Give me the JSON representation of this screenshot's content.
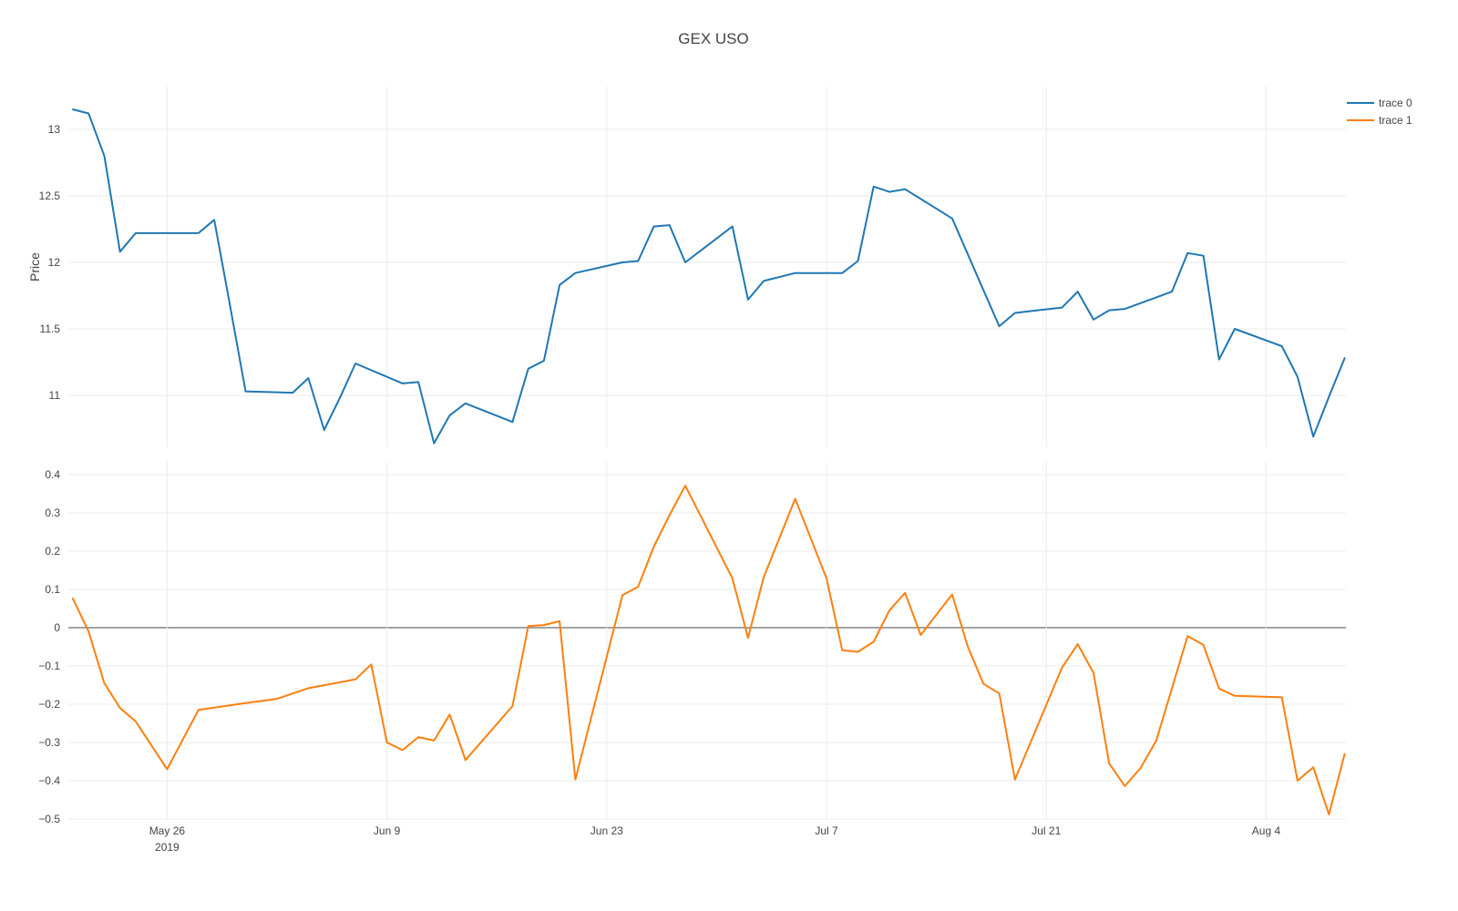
{
  "title": "GEX USO",
  "legend": {
    "items": [
      {
        "label": "trace 0",
        "color": "#1f77b4"
      },
      {
        "label": "trace 1",
        "color": "#ff7f0e"
      }
    ]
  },
  "colors": {
    "grid": "#ebebeb",
    "zeroline": "#444444",
    "text": "#444444",
    "background": "#ffffff"
  },
  "chart_data": {
    "type": "line",
    "title": "GEX USO",
    "x_type": "date",
    "x_range": [
      "2019-05-20",
      "2019-08-09"
    ],
    "grid": true,
    "legend_position": "top-right",
    "x_ticks": [
      {
        "date": "2019-05-26",
        "label": "May 26",
        "year": "2019"
      },
      {
        "date": "2019-06-09",
        "label": "Jun 9",
        "year": ""
      },
      {
        "date": "2019-06-23",
        "label": "Jun 23",
        "year": ""
      },
      {
        "date": "2019-07-07",
        "label": "Jul 7",
        "year": ""
      },
      {
        "date": "2019-07-21",
        "label": "Jul 21",
        "year": ""
      },
      {
        "date": "2019-08-04",
        "label": "Aug 4",
        "year": ""
      }
    ],
    "subplots": [
      {
        "name": "price",
        "ylabel": "Price",
        "y_range": [
          10.55,
          13.32
        ],
        "y_ticks": [
          {
            "label": "13",
            "value": 13
          },
          {
            "label": "12.5",
            "value": 12.5
          },
          {
            "label": "12",
            "value": 12
          },
          {
            "label": "11.5",
            "value": 11.5
          },
          {
            "label": "11",
            "value": 11
          }
        ],
        "zeroline": false
      },
      {
        "name": "spread",
        "ylabel": "",
        "y_range": [
          -0.52,
          0.44
        ],
        "y_ticks": [
          {
            "label": "0.4",
            "value": 0.4
          },
          {
            "label": "0.3",
            "value": 0.3
          },
          {
            "label": "0.2",
            "value": 0.2
          },
          {
            "label": "0.1",
            "value": 0.1
          },
          {
            "label": "0",
            "value": 0
          },
          {
            "label": "−0.1",
            "value": -0.1
          },
          {
            "label": "−0.2",
            "value": -0.2
          },
          {
            "label": "−0.3",
            "value": -0.3
          },
          {
            "label": "−0.4",
            "value": -0.4
          },
          {
            "label": "−0.5",
            "value": -0.5
          }
        ],
        "zeroline": true
      }
    ],
    "series": [
      {
        "name": "trace 0",
        "color": "#1f77b4",
        "subplot": "price",
        "points": [
          [
            "2019-05-20",
            13.15
          ],
          [
            "2019-05-21",
            13.12
          ],
          [
            "2019-05-22",
            12.8
          ],
          [
            "2019-05-23",
            12.08
          ],
          [
            "2019-05-24",
            12.22
          ],
          [
            "2019-05-28",
            12.22
          ],
          [
            "2019-05-29",
            12.32
          ],
          [
            "2019-05-30",
            11.68
          ],
          [
            "2019-05-31",
            11.03
          ],
          [
            "2019-06-03",
            11.02
          ],
          [
            "2019-06-04",
            11.13
          ],
          [
            "2019-06-05",
            10.74
          ],
          [
            "2019-06-06",
            10.98
          ],
          [
            "2019-06-07",
            11.24
          ],
          [
            "2019-06-10",
            11.09
          ],
          [
            "2019-06-11",
            11.1
          ],
          [
            "2019-06-12",
            10.64
          ],
          [
            "2019-06-13",
            10.85
          ],
          [
            "2019-06-14",
            10.94
          ],
          [
            "2019-06-17",
            10.8
          ],
          [
            "2019-06-18",
            11.2
          ],
          [
            "2019-06-19",
            11.26
          ],
          [
            "2019-06-20",
            11.83
          ],
          [
            "2019-06-21",
            11.92
          ],
          [
            "2019-06-24",
            12.0
          ],
          [
            "2019-06-25",
            12.01
          ],
          [
            "2019-06-26",
            12.27
          ],
          [
            "2019-06-27",
            12.28
          ],
          [
            "2019-06-28",
            12.0
          ],
          [
            "2019-07-01",
            12.27
          ],
          [
            "2019-07-02",
            11.72
          ],
          [
            "2019-07-03",
            11.86
          ],
          [
            "2019-07-05",
            11.92
          ],
          [
            "2019-07-08",
            11.92
          ],
          [
            "2019-07-09",
            12.01
          ],
          [
            "2019-07-10",
            12.57
          ],
          [
            "2019-07-11",
            12.53
          ],
          [
            "2019-07-12",
            12.55
          ],
          [
            "2019-07-15",
            12.33
          ],
          [
            "2019-07-16",
            12.06
          ],
          [
            "2019-07-17",
            11.79
          ],
          [
            "2019-07-18",
            11.52
          ],
          [
            "2019-07-19",
            11.62
          ],
          [
            "2019-07-22",
            11.66
          ],
          [
            "2019-07-23",
            11.78
          ],
          [
            "2019-07-24",
            11.57
          ],
          [
            "2019-07-25",
            11.64
          ],
          [
            "2019-07-26",
            11.65
          ],
          [
            "2019-07-29",
            11.78
          ],
          [
            "2019-07-30",
            12.07
          ],
          [
            "2019-07-31",
            12.05
          ],
          [
            "2019-08-01",
            11.27
          ],
          [
            "2019-08-02",
            11.5
          ],
          [
            "2019-08-05",
            11.37
          ],
          [
            "2019-08-06",
            11.14
          ],
          [
            "2019-08-07",
            10.69
          ],
          [
            "2019-08-08",
            10.99
          ],
          [
            "2019-08-09",
            11.28
          ]
        ]
      },
      {
        "name": "trace 1",
        "color": "#ff7f0e",
        "subplot": "spread",
        "points": [
          [
            "2019-05-20",
            0.076
          ],
          [
            "2019-05-21",
            -0.01
          ],
          [
            "2019-05-22",
            -0.145
          ],
          [
            "2019-05-23",
            -0.21
          ],
          [
            "2019-05-24",
            -0.245
          ],
          [
            "2019-05-26",
            -0.37
          ],
          [
            "2019-05-28",
            -0.215
          ],
          [
            "2019-05-31",
            -0.197
          ],
          [
            "2019-06-02",
            -0.186
          ],
          [
            "2019-06-04",
            -0.158
          ],
          [
            "2019-06-07",
            -0.135
          ],
          [
            "2019-06-08",
            -0.096
          ],
          [
            "2019-06-09",
            -0.3
          ],
          [
            "2019-06-10",
            -0.32
          ],
          [
            "2019-06-11",
            -0.286
          ],
          [
            "2019-06-12",
            -0.295
          ],
          [
            "2019-06-13",
            -0.227
          ],
          [
            "2019-06-14",
            -0.346
          ],
          [
            "2019-06-17",
            -0.205
          ],
          [
            "2019-06-18",
            0.004
          ],
          [
            "2019-06-19",
            0.007
          ],
          [
            "2019-06-20",
            0.017
          ],
          [
            "2019-06-21",
            -0.397
          ],
          [
            "2019-06-24",
            0.085
          ],
          [
            "2019-06-25",
            0.107
          ],
          [
            "2019-06-26",
            0.212
          ],
          [
            "2019-06-27",
            0.294
          ],
          [
            "2019-06-28",
            0.371
          ],
          [
            "2019-07-01",
            0.129
          ],
          [
            "2019-07-02",
            -0.027
          ],
          [
            "2019-07-03",
            0.132
          ],
          [
            "2019-07-05",
            0.337
          ],
          [
            "2019-07-06",
            0.233
          ],
          [
            "2019-07-07",
            0.129
          ],
          [
            "2019-07-08",
            -0.059
          ],
          [
            "2019-07-09",
            -0.063
          ],
          [
            "2019-07-10",
            -0.037
          ],
          [
            "2019-07-11",
            0.045
          ],
          [
            "2019-07-12",
            0.091
          ],
          [
            "2019-07-13",
            -0.019
          ],
          [
            "2019-07-15",
            0.087
          ],
          [
            "2019-07-16",
            -0.05
          ],
          [
            "2019-07-17",
            -0.147
          ],
          [
            "2019-07-18",
            -0.172
          ],
          [
            "2019-07-19",
            -0.397
          ],
          [
            "2019-07-22",
            -0.104
          ],
          [
            "2019-07-23",
            -0.043
          ],
          [
            "2019-07-24",
            -0.118
          ],
          [
            "2019-07-25",
            -0.355
          ],
          [
            "2019-07-26",
            -0.414
          ],
          [
            "2019-07-27",
            -0.367
          ],
          [
            "2019-07-28",
            -0.295
          ],
          [
            "2019-07-30",
            -0.022
          ],
          [
            "2019-07-31",
            -0.045
          ],
          [
            "2019-08-01",
            -0.159
          ],
          [
            "2019-08-02",
            -0.178
          ],
          [
            "2019-08-05",
            -0.182
          ],
          [
            "2019-08-06",
            -0.4
          ],
          [
            "2019-08-07",
            -0.365
          ],
          [
            "2019-08-08",
            -0.488
          ],
          [
            "2019-08-09",
            -0.33
          ]
        ]
      }
    ]
  }
}
